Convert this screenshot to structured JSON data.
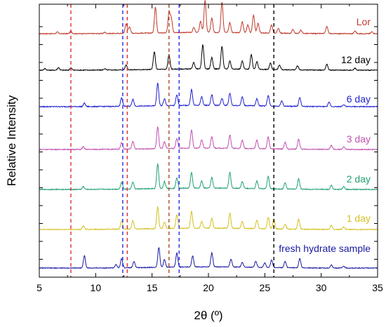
{
  "chart_data": {
    "type": "line",
    "title": "",
    "xlabel": "2θ (º)",
    "ylabel": "Relative Intensity",
    "xlim": [
      5,
      35
    ],
    "xticks": [
      5,
      10,
      15,
      20,
      25,
      30,
      35
    ],
    "x_tick_labels": [
      "5",
      "10",
      "15",
      "20",
      "25",
      "30",
      "35"
    ],
    "grid": false,
    "legend": "inline labels at right of each trace",
    "reference_lines": [
      {
        "x": 7.8,
        "color": "#e03030",
        "style": "dashed"
      },
      {
        "x": 12.4,
        "color": "#2a2ae0",
        "style": "dashed"
      },
      {
        "x": 12.8,
        "color": "#e03030",
        "style": "dashed"
      },
      {
        "x": 16.5,
        "color": "#b04a20",
        "style": "dashed"
      },
      {
        "x": 17.4,
        "color": "#2a2ae0",
        "style": "dashed"
      },
      {
        "x": 25.8,
        "color": "#000000",
        "style": "dashed"
      }
    ],
    "series": [
      {
        "name": "Lor",
        "color": "#c0392b",
        "baseline_rel": 0.0,
        "peaks": [
          [
            6.6,
            0.05
          ],
          [
            7.8,
            0.07
          ],
          [
            10.8,
            0.04
          ],
          [
            12.7,
            0.3
          ],
          [
            13.0,
            0.2
          ],
          [
            15.3,
            0.8
          ],
          [
            16.5,
            0.62
          ],
          [
            16.7,
            0.45
          ],
          [
            18.7,
            0.15
          ],
          [
            19.3,
            0.35
          ],
          [
            19.7,
            1.0
          ],
          [
            20.3,
            0.45
          ],
          [
            21.2,
            0.95
          ],
          [
            21.9,
            0.3
          ],
          [
            23.0,
            0.35
          ],
          [
            23.5,
            0.25
          ],
          [
            24.0,
            0.55
          ],
          [
            24.4,
            0.3
          ],
          [
            25.6,
            0.25
          ],
          [
            26.2,
            0.15
          ],
          [
            27.5,
            0.12
          ],
          [
            28.2,
            0.1
          ],
          [
            30.5,
            0.22
          ],
          [
            33.0,
            0.08
          ],
          [
            34.5,
            0.06
          ]
        ]
      },
      {
        "name": "12 day",
        "color": "#000000",
        "baseline_rel": 0.0,
        "peaks": [
          [
            5.5,
            0.05
          ],
          [
            6.7,
            0.08
          ],
          [
            7.8,
            0.07
          ],
          [
            10.8,
            0.04
          ],
          [
            12.7,
            0.15
          ],
          [
            15.2,
            0.55
          ],
          [
            16.5,
            0.45
          ],
          [
            18.7,
            0.2
          ],
          [
            19.5,
            0.75
          ],
          [
            20.3,
            0.35
          ],
          [
            21.2,
            0.7
          ],
          [
            21.9,
            0.25
          ],
          [
            23.0,
            0.25
          ],
          [
            23.8,
            0.45
          ],
          [
            24.3,
            0.25
          ],
          [
            25.5,
            0.2
          ],
          [
            26.3,
            0.15
          ],
          [
            27.9,
            0.12
          ],
          [
            30.5,
            0.18
          ],
          [
            33.0,
            0.06
          ]
        ]
      },
      {
        "name": "6 day",
        "color": "#2020d0",
        "baseline_rel": 0.0,
        "peaks": [
          [
            9.0,
            0.1
          ],
          [
            12.3,
            0.25
          ],
          [
            13.3,
            0.2
          ],
          [
            15.5,
            0.65
          ],
          [
            16.1,
            0.2
          ],
          [
            17.2,
            0.3
          ],
          [
            18.5,
            0.45
          ],
          [
            19.4,
            0.25
          ],
          [
            20.3,
            0.3
          ],
          [
            21.2,
            0.2
          ],
          [
            21.9,
            0.35
          ],
          [
            23.0,
            0.25
          ],
          [
            24.3,
            0.2
          ],
          [
            25.3,
            0.3
          ],
          [
            26.5,
            0.15
          ],
          [
            28.1,
            0.25
          ],
          [
            30.7,
            0.12
          ],
          [
            32.0,
            0.06
          ]
        ]
      },
      {
        "name": "3 day",
        "color": "#c050b0",
        "baseline_rel": 0.0,
        "peaks": [
          [
            8.9,
            0.08
          ],
          [
            12.3,
            0.2
          ],
          [
            13.3,
            0.22
          ],
          [
            15.5,
            0.65
          ],
          [
            16.1,
            0.2
          ],
          [
            17.2,
            0.3
          ],
          [
            18.5,
            0.55
          ],
          [
            19.4,
            0.25
          ],
          [
            20.3,
            0.35
          ],
          [
            21.9,
            0.4
          ],
          [
            23.0,
            0.25
          ],
          [
            24.3,
            0.25
          ],
          [
            25.3,
            0.35
          ],
          [
            26.8,
            0.2
          ],
          [
            28.0,
            0.3
          ],
          [
            30.9,
            0.12
          ],
          [
            32.0,
            0.08
          ]
        ]
      },
      {
        "name": "2 day",
        "color": "#20a070",
        "baseline_rel": 0.0,
        "peaks": [
          [
            8.9,
            0.08
          ],
          [
            12.3,
            0.2
          ],
          [
            13.3,
            0.2
          ],
          [
            15.5,
            0.7
          ],
          [
            16.1,
            0.2
          ],
          [
            17.2,
            0.3
          ],
          [
            18.5,
            0.45
          ],
          [
            19.4,
            0.2
          ],
          [
            20.3,
            0.3
          ],
          [
            21.9,
            0.45
          ],
          [
            23.0,
            0.2
          ],
          [
            24.3,
            0.22
          ],
          [
            25.3,
            0.35
          ],
          [
            26.8,
            0.18
          ],
          [
            28.0,
            0.3
          ],
          [
            30.9,
            0.12
          ],
          [
            32.0,
            0.08
          ]
        ]
      },
      {
        "name": "1 day",
        "color": "#d4c020",
        "baseline_rel": 0.0,
        "peaks": [
          [
            8.9,
            0.1
          ],
          [
            12.3,
            0.25
          ],
          [
            13.3,
            0.25
          ],
          [
            15.5,
            0.65
          ],
          [
            16.1,
            0.2
          ],
          [
            17.2,
            0.4
          ],
          [
            18.5,
            0.5
          ],
          [
            19.4,
            0.2
          ],
          [
            20.3,
            0.3
          ],
          [
            21.9,
            0.45
          ],
          [
            23.0,
            0.2
          ],
          [
            24.3,
            0.25
          ],
          [
            25.3,
            0.35
          ],
          [
            25.8,
            0.3
          ],
          [
            26.8,
            0.15
          ],
          [
            28.0,
            0.3
          ],
          [
            30.9,
            0.12
          ],
          [
            32.0,
            0.08
          ]
        ]
      },
      {
        "name": "fresh hydrate sample",
        "color": "#1a1aa0",
        "baseline_rel": 0.0,
        "peaks": [
          [
            9.0,
            0.4
          ],
          [
            11.8,
            0.1
          ],
          [
            12.3,
            0.3
          ],
          [
            13.4,
            0.2
          ],
          [
            15.6,
            0.65
          ],
          [
            16.1,
            0.25
          ],
          [
            17.2,
            0.45
          ],
          [
            18.6,
            0.35
          ],
          [
            20.3,
            0.45
          ],
          [
            22.0,
            0.25
          ],
          [
            23.0,
            0.15
          ],
          [
            24.2,
            0.2
          ],
          [
            25.0,
            0.15
          ],
          [
            25.6,
            0.25
          ],
          [
            26.8,
            0.2
          ],
          [
            28.1,
            0.3
          ],
          [
            30.9,
            0.1
          ],
          [
            32.0,
            0.06
          ]
        ]
      }
    ]
  }
}
